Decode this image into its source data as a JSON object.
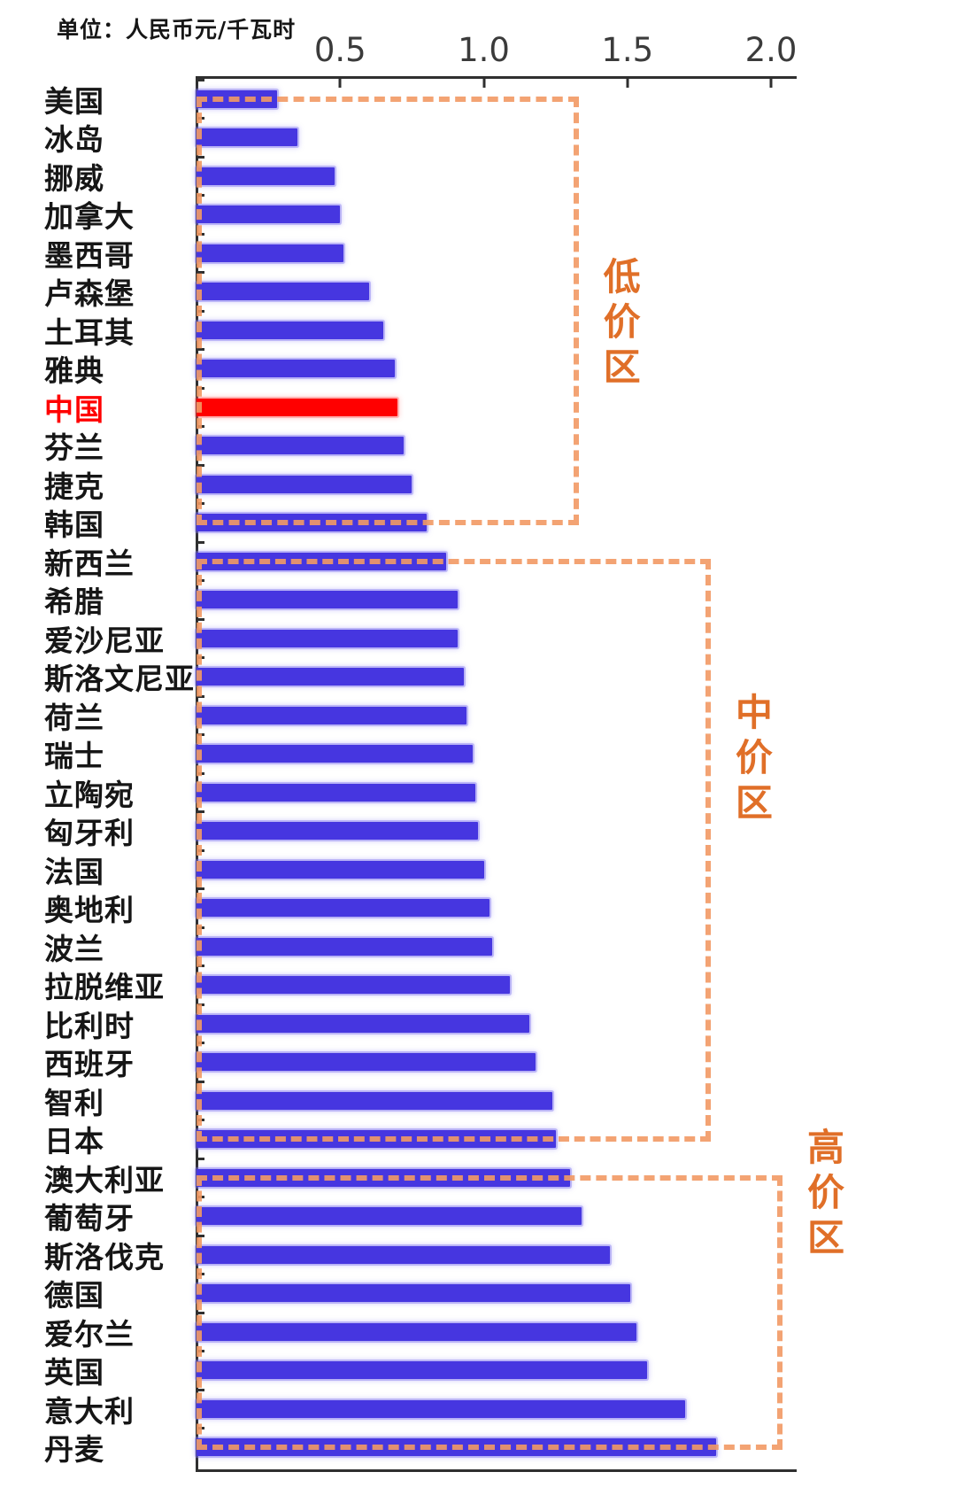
{
  "chart_data": {
    "type": "bar",
    "orientation": "horizontal",
    "title": "",
    "unit_label": "单位：人民币元/千瓦时",
    "xlabel": "",
    "ylabel": "",
    "x_ticks": [
      0.5,
      1.0,
      1.5,
      2.0
    ],
    "x_max": 2.08,
    "grid": false,
    "legend": "none",
    "categories": [
      "美国",
      "冰岛",
      "挪威",
      "加拿大",
      "墨西哥",
      "卢森堡",
      "土耳其",
      "雅典",
      "中国",
      "芬兰",
      "捷克",
      "韩国",
      "新西兰",
      "希腊",
      "爱沙尼亚",
      "斯洛文尼亚",
      "荷兰",
      "瑞士",
      "立陶宛",
      "匈牙利",
      "法国",
      "奥地利",
      "波兰",
      "拉脱维亚",
      "比利时",
      "西班牙",
      "智利",
      "日本",
      "澳大利亚",
      "葡萄牙",
      "斯洛伐克",
      "德国",
      "爱尔兰",
      "英国",
      "意大利",
      "丹麦"
    ],
    "values": [
      0.28,
      0.35,
      0.48,
      0.5,
      0.51,
      0.6,
      0.65,
      0.69,
      0.7,
      0.72,
      0.75,
      0.8,
      0.87,
      0.91,
      0.91,
      0.93,
      0.94,
      0.96,
      0.97,
      0.98,
      1.0,
      1.02,
      1.03,
      1.09,
      1.16,
      1.18,
      1.24,
      1.25,
      1.3,
      1.34,
      1.44,
      1.51,
      1.53,
      1.57,
      1.7,
      1.81
    ],
    "highlight_category": "中国",
    "colors": {
      "bar": "#4636E0",
      "highlight_bar": "#FF0000",
      "zone_dash": "#F29A64",
      "zone_label_text": "#E06F28",
      "highlight_label": "#FF0000",
      "label": "#161616",
      "axis": "#2F2F2F"
    },
    "zones": [
      {
        "label": "低价区",
        "start_category": "美国",
        "end_category": "韩国",
        "start_row": 0,
        "end_row": 11,
        "right_value": 1.33,
        "label_center_row": 5.8
      },
      {
        "label": "中价区",
        "start_category": "新西兰",
        "end_category": "日本",
        "start_row": 12,
        "end_row": 27,
        "right_value": 1.79,
        "label_center_row": 17.1
      },
      {
        "label": "高价区",
        "start_category": "澳大利亚",
        "end_category": "丹麦",
        "start_row": 28,
        "end_row": 35,
        "right_value": 2.04,
        "label_center_row": 28.4
      }
    ],
    "dashed_line_rows": [
      0,
      11,
      12,
      27,
      28,
      35
    ]
  }
}
